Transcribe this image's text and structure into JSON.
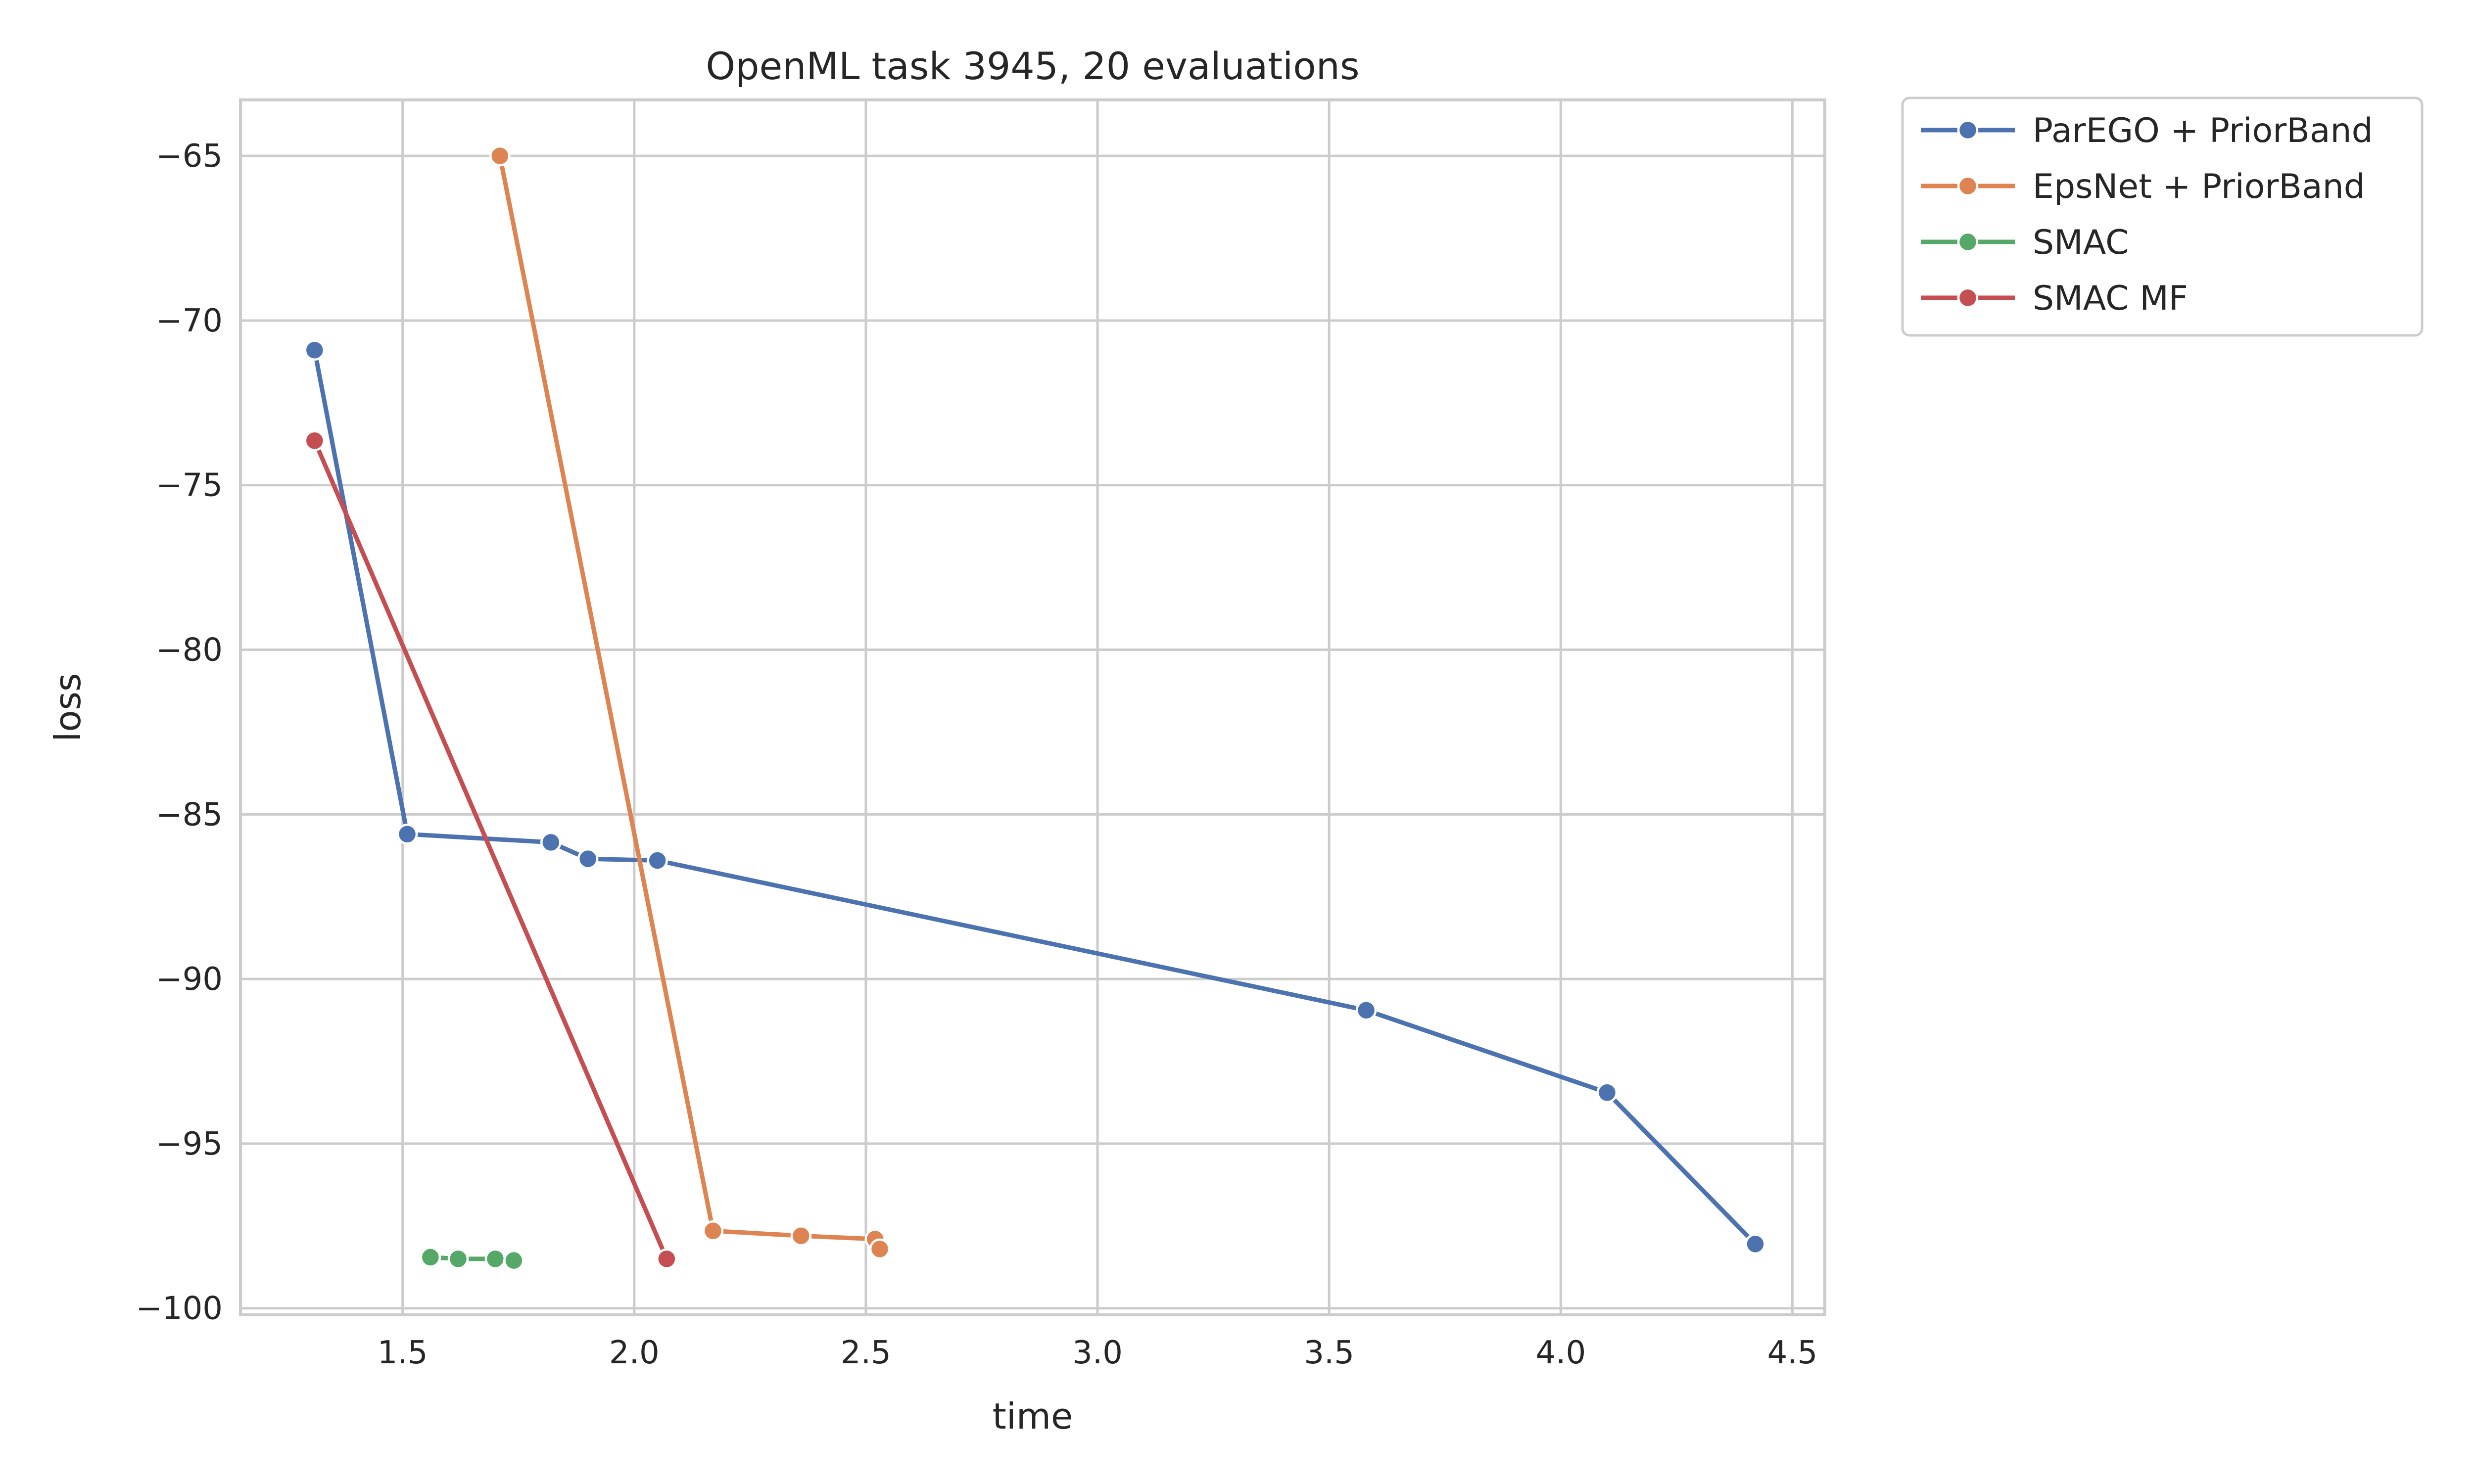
{
  "chart_data": {
    "type": "line",
    "title": "OpenML task 3945, 20 evaluations",
    "xlabel": "time",
    "ylabel": "loss",
    "xlim": [
      1.15,
      4.57
    ],
    "ylim": [
      -100.2,
      -63.3
    ],
    "xticks": [
      1.5,
      2.0,
      2.5,
      3.0,
      3.5,
      4.0,
      4.5
    ],
    "xtick_labels": [
      "1.5",
      "2.0",
      "2.5",
      "3.0",
      "3.5",
      "4.0",
      "4.5"
    ],
    "yticks": [
      -65,
      -70,
      -75,
      -80,
      -85,
      -90,
      -95,
      -100
    ],
    "ytick_labels": [
      "−65",
      "−70",
      "−75",
      "−80",
      "−85",
      "−90",
      "−95",
      "−100"
    ],
    "grid": true,
    "legend_position": "outside-top-right",
    "series": [
      {
        "name": "ParEGO + PriorBand",
        "color": "#4c72b0",
        "points": [
          [
            1.31,
            -70.9
          ],
          [
            1.51,
            -85.6
          ],
          [
            1.82,
            -85.85
          ],
          [
            1.9,
            -86.35
          ],
          [
            2.05,
            -86.4
          ],
          [
            3.58,
            -90.95
          ],
          [
            4.1,
            -93.45
          ],
          [
            4.42,
            -98.05
          ]
        ]
      },
      {
        "name": "EpsNet + PriorBand",
        "color": "#dd8452",
        "points": [
          [
            1.71,
            -65.0
          ],
          [
            2.17,
            -97.65
          ],
          [
            2.36,
            -97.8
          ],
          [
            2.52,
            -97.9
          ],
          [
            2.53,
            -98.2
          ]
        ]
      },
      {
        "name": "SMAC",
        "color": "#55a868",
        "points": [
          [
            1.56,
            -98.45
          ],
          [
            1.62,
            -98.5
          ],
          [
            1.7,
            -98.5
          ],
          [
            1.74,
            -98.55
          ]
        ]
      },
      {
        "name": "SMAC MF",
        "color": "#c44e52",
        "points": [
          [
            1.31,
            -73.65
          ],
          [
            2.07,
            -98.5
          ]
        ]
      }
    ]
  }
}
